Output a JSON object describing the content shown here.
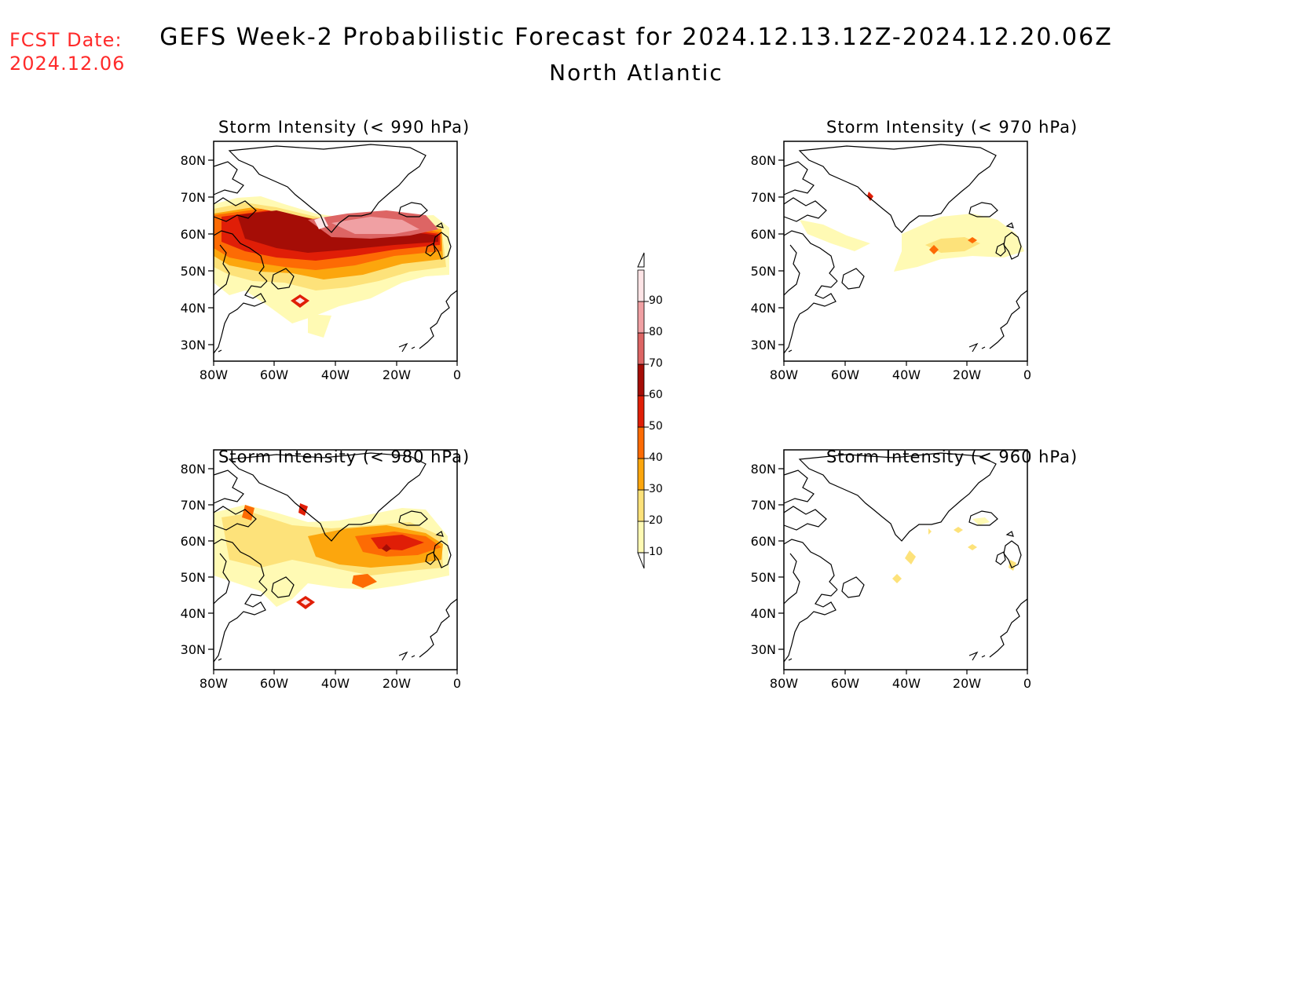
{
  "header": {
    "fcst_label": "FCST Date:",
    "fcst_date": "2024.12.06",
    "title": "GEFS Week-2 Probabilistic Forecast for 2024.12.13.12Z-2024.12.20.06Z",
    "region": "North Atlantic"
  },
  "panels": [
    {
      "title": "Storm Intensity (< 990 hPa)",
      "threshold": 990
    },
    {
      "title": "Storm Intensity (< 970 hPa)",
      "threshold": 970
    },
    {
      "title": "Storm Intensity (< 980 hPa)",
      "threshold": 980
    },
    {
      "title": "Storm Intensity (< 960 hPa)",
      "threshold": 960
    }
  ],
  "axes": {
    "lat_labels": [
      "80N",
      "70N",
      "60N",
      "50N",
      "40N",
      "30N"
    ],
    "lon_labels": [
      "80W",
      "60W",
      "40W",
      "20W",
      "0"
    ]
  },
  "colorbar": {
    "levels": [
      "10",
      "20",
      "30",
      "40",
      "50",
      "60",
      "70",
      "80",
      "90"
    ],
    "colors": [
      "#fffab4",
      "#fde27a",
      "#fca60d",
      "#fd6b04",
      "#e01e07",
      "#a50d06",
      "#dd6564",
      "#f0a0a3",
      "#fde4e6"
    ]
  }
}
